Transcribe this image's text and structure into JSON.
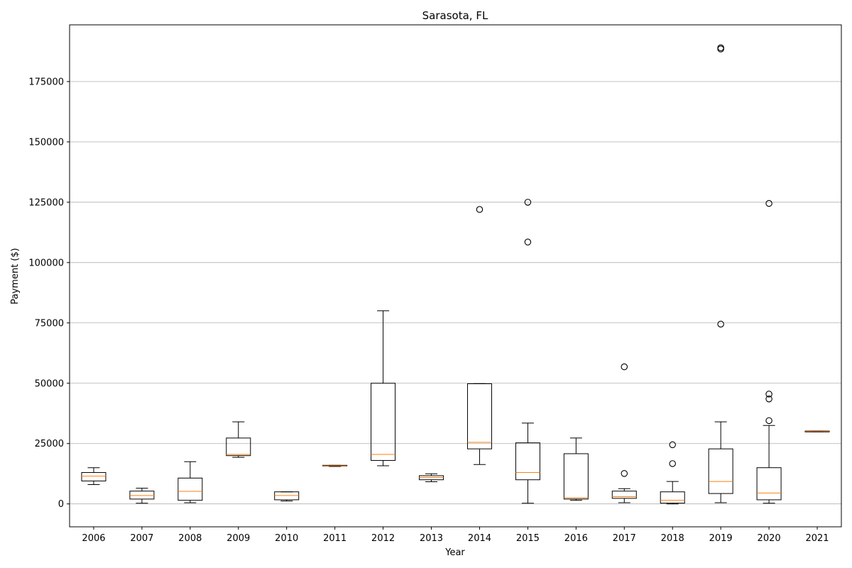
{
  "chart_data": {
    "type": "box",
    "title": "Sarasota, FL",
    "xlabel": "Year",
    "ylabel": "Payment ($)",
    "ylim": [
      -9500,
      198500
    ],
    "yticks": [
      0,
      25000,
      50000,
      75000,
      100000,
      125000,
      150000,
      175000
    ],
    "grid": "y",
    "colors": {
      "box": "#000000",
      "median": "#ff7f0e",
      "grid": "#b0b0b0"
    },
    "categories": [
      "2006",
      "2007",
      "2008",
      "2009",
      "2010",
      "2011",
      "2012",
      "2013",
      "2014",
      "2015",
      "2016",
      "2017",
      "2018",
      "2019",
      "2020",
      "2021"
    ],
    "boxes": [
      {
        "year": "2006",
        "whisker_low": 8000,
        "q1": 9500,
        "median": 11500,
        "q3": 13000,
        "whisker_high": 15000,
        "outliers": []
      },
      {
        "year": "2007",
        "whisker_low": 300,
        "q1": 2000,
        "median": 3500,
        "q3": 5300,
        "whisker_high": 6500,
        "outliers": []
      },
      {
        "year": "2008",
        "whisker_low": 500,
        "q1": 1500,
        "median": 5200,
        "q3": 10700,
        "whisker_high": 17500,
        "outliers": []
      },
      {
        "year": "2009",
        "whisker_low": 19300,
        "q1": 20000,
        "median": 20500,
        "q3": 27300,
        "whisker_high": 34000,
        "outliers": []
      },
      {
        "year": "2010",
        "whisker_low": 1200,
        "q1": 1700,
        "median": 3500,
        "q3": 5000,
        "whisker_high": 5000,
        "outliers": []
      },
      {
        "year": "2011",
        "whisker_low": 15500,
        "q1": 15700,
        "median": 15800,
        "q3": 16000,
        "whisker_high": 16000,
        "outliers": []
      },
      {
        "year": "2012",
        "whisker_low": 15800,
        "q1": 18000,
        "median": 20500,
        "q3": 50000,
        "whisker_high": 80000,
        "outliers": []
      },
      {
        "year": "2013",
        "whisker_low": 9200,
        "q1": 10000,
        "median": 11000,
        "q3": 11700,
        "whisker_high": 12500,
        "outliers": []
      },
      {
        "year": "2014",
        "whisker_low": 16300,
        "q1": 22800,
        "median": 25500,
        "q3": 49800,
        "whisker_high": 49800,
        "outliers": [
          122000
        ]
      },
      {
        "year": "2015",
        "whisker_low": 300,
        "q1": 10000,
        "median": 13000,
        "q3": 25300,
        "whisker_high": 33500,
        "outliers": [
          108500,
          125000
        ]
      },
      {
        "year": "2016",
        "whisker_low": 1500,
        "q1": 2000,
        "median": 2500,
        "q3": 20800,
        "whisker_high": 27300,
        "outliers": []
      },
      {
        "year": "2017",
        "whisker_low": 500,
        "q1": 2300,
        "median": 3000,
        "q3": 5300,
        "whisker_high": 6300,
        "outliers": [
          12600,
          56800
        ]
      },
      {
        "year": "2018",
        "whisker_low": 0,
        "q1": 300,
        "median": 1500,
        "q3": 5000,
        "whisker_high": 9300,
        "outliers": [
          16700,
          24500
        ]
      },
      {
        "year": "2019",
        "whisker_low": 500,
        "q1": 4300,
        "median": 9300,
        "q3": 22800,
        "whisker_high": 34000,
        "outliers": [
          74500,
          188500,
          189000
        ]
      },
      {
        "year": "2020",
        "whisker_low": 300,
        "q1": 1700,
        "median": 4500,
        "q3": 15000,
        "whisker_high": 32500,
        "outliers": [
          34500,
          43500,
          45500,
          124500
        ]
      },
      {
        "year": "2021",
        "whisker_low": 29800,
        "q1": 29800,
        "median": 30000,
        "q3": 30200,
        "whisker_high": 30200,
        "outliers": []
      }
    ]
  }
}
